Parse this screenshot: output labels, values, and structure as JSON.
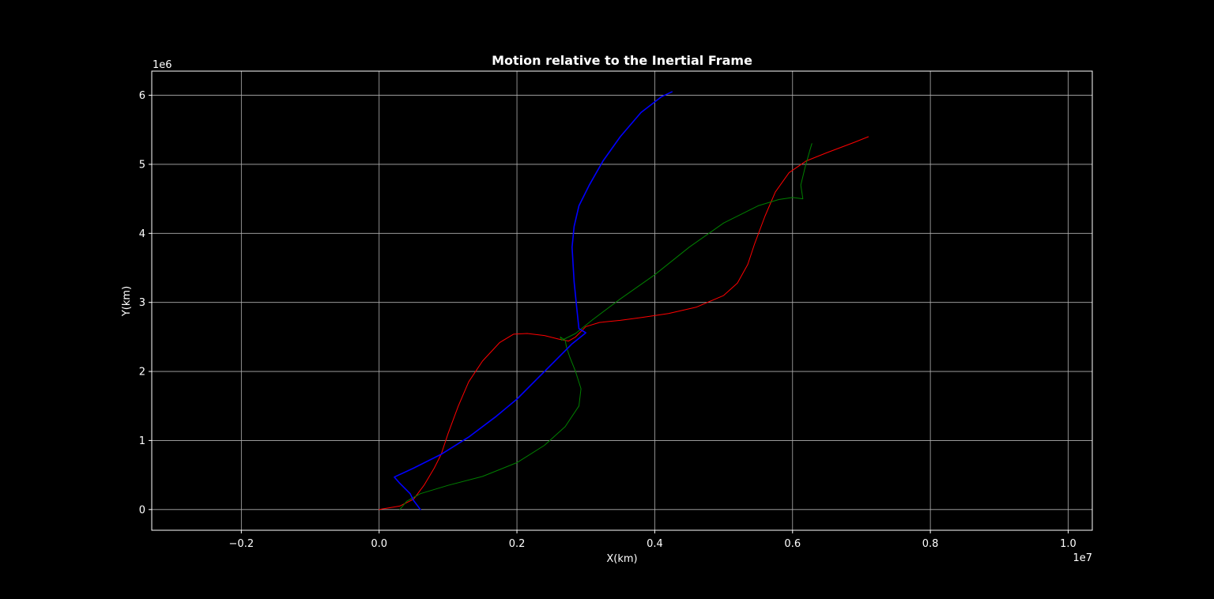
{
  "chart_data": {
    "type": "line",
    "title": "Motion relative to the Inertial Frame",
    "xlabel": "X(km)",
    "ylabel": "Y(km)",
    "x_offset_label": "1e7",
    "y_offset_label": "1e6",
    "xlim": [
      -0.33,
      1.035
    ],
    "ylim": [
      -0.3,
      6.35
    ],
    "x_ticks": [
      -0.2,
      0.0,
      0.2,
      0.4,
      0.6,
      0.8,
      1.0
    ],
    "x_tick_labels": [
      "−0.2",
      "0.0",
      "0.2",
      "0.4",
      "0.6",
      "0.8",
      "1.0"
    ],
    "y_ticks": [
      0,
      1,
      2,
      3,
      4,
      5,
      6
    ],
    "y_tick_labels": [
      "0",
      "1",
      "2",
      "3",
      "4",
      "5",
      "6"
    ],
    "grid": true,
    "legend": "none",
    "colors": {
      "background": "#000000",
      "axes": "#ffffff",
      "grid": "#b0b0b0"
    },
    "series": [
      {
        "color": "#ff0000",
        "points": [
          [
            0.0,
            0.0
          ],
          [
            0.03,
            0.05
          ],
          [
            0.05,
            0.15
          ],
          [
            0.065,
            0.35
          ],
          [
            0.08,
            0.6
          ],
          [
            0.09,
            0.8
          ],
          [
            0.1,
            1.1
          ],
          [
            0.115,
            1.5
          ],
          [
            0.13,
            1.85
          ],
          [
            0.15,
            2.15
          ],
          [
            0.175,
            2.42
          ],
          [
            0.195,
            2.54
          ],
          [
            0.215,
            2.55
          ],
          [
            0.24,
            2.52
          ],
          [
            0.26,
            2.47
          ],
          [
            0.275,
            2.44
          ],
          [
            0.285,
            2.5
          ],
          [
            0.3,
            2.65
          ],
          [
            0.32,
            2.71
          ],
          [
            0.35,
            2.74
          ],
          [
            0.38,
            2.78
          ],
          [
            0.42,
            2.84
          ],
          [
            0.46,
            2.93
          ],
          [
            0.5,
            3.1
          ],
          [
            0.52,
            3.28
          ],
          [
            0.535,
            3.55
          ],
          [
            0.545,
            3.85
          ],
          [
            0.56,
            4.25
          ],
          [
            0.575,
            4.6
          ],
          [
            0.595,
            4.88
          ],
          [
            0.62,
            5.05
          ],
          [
            0.65,
            5.17
          ],
          [
            0.69,
            5.32
          ],
          [
            0.71,
            5.4
          ]
        ]
      },
      {
        "color": "#008000",
        "points": [
          [
            0.03,
            0.0
          ],
          [
            0.04,
            0.12
          ],
          [
            0.06,
            0.23
          ],
          [
            0.1,
            0.35
          ],
          [
            0.15,
            0.48
          ],
          [
            0.2,
            0.68
          ],
          [
            0.24,
            0.93
          ],
          [
            0.27,
            1.2
          ],
          [
            0.29,
            1.5
          ],
          [
            0.293,
            1.75
          ],
          [
            0.285,
            2.0
          ],
          [
            0.277,
            2.2
          ],
          [
            0.272,
            2.35
          ],
          [
            0.27,
            2.45
          ],
          [
            0.263,
            2.5
          ],
          [
            0.265,
            2.45
          ],
          [
            0.285,
            2.55
          ],
          [
            0.31,
            2.75
          ],
          [
            0.35,
            3.05
          ],
          [
            0.4,
            3.4
          ],
          [
            0.45,
            3.8
          ],
          [
            0.5,
            4.15
          ],
          [
            0.55,
            4.4
          ],
          [
            0.58,
            4.49
          ],
          [
            0.6,
            4.52
          ],
          [
            0.615,
            4.5
          ],
          [
            0.612,
            4.7
          ],
          [
            0.618,
            4.95
          ],
          [
            0.625,
            5.2
          ],
          [
            0.628,
            5.3
          ]
        ]
      },
      {
        "color": "#0000ff",
        "points": [
          [
            0.06,
            0.0
          ],
          [
            0.05,
            0.13
          ],
          [
            0.045,
            0.23
          ],
          [
            0.03,
            0.38
          ],
          [
            0.022,
            0.47
          ],
          [
            0.05,
            0.6
          ],
          [
            0.09,
            0.8
          ],
          [
            0.13,
            1.05
          ],
          [
            0.17,
            1.35
          ],
          [
            0.2,
            1.6
          ],
          [
            0.23,
            1.9
          ],
          [
            0.26,
            2.2
          ],
          [
            0.28,
            2.4
          ],
          [
            0.295,
            2.52
          ],
          [
            0.3,
            2.56
          ],
          [
            0.29,
            2.62
          ],
          [
            0.287,
            2.9
          ],
          [
            0.283,
            3.3
          ],
          [
            0.28,
            3.8
          ],
          [
            0.283,
            4.1
          ],
          [
            0.29,
            4.4
          ],
          [
            0.305,
            4.7
          ],
          [
            0.325,
            5.05
          ],
          [
            0.35,
            5.4
          ],
          [
            0.38,
            5.75
          ],
          [
            0.41,
            5.98
          ],
          [
            0.425,
            6.05
          ]
        ]
      }
    ]
  }
}
